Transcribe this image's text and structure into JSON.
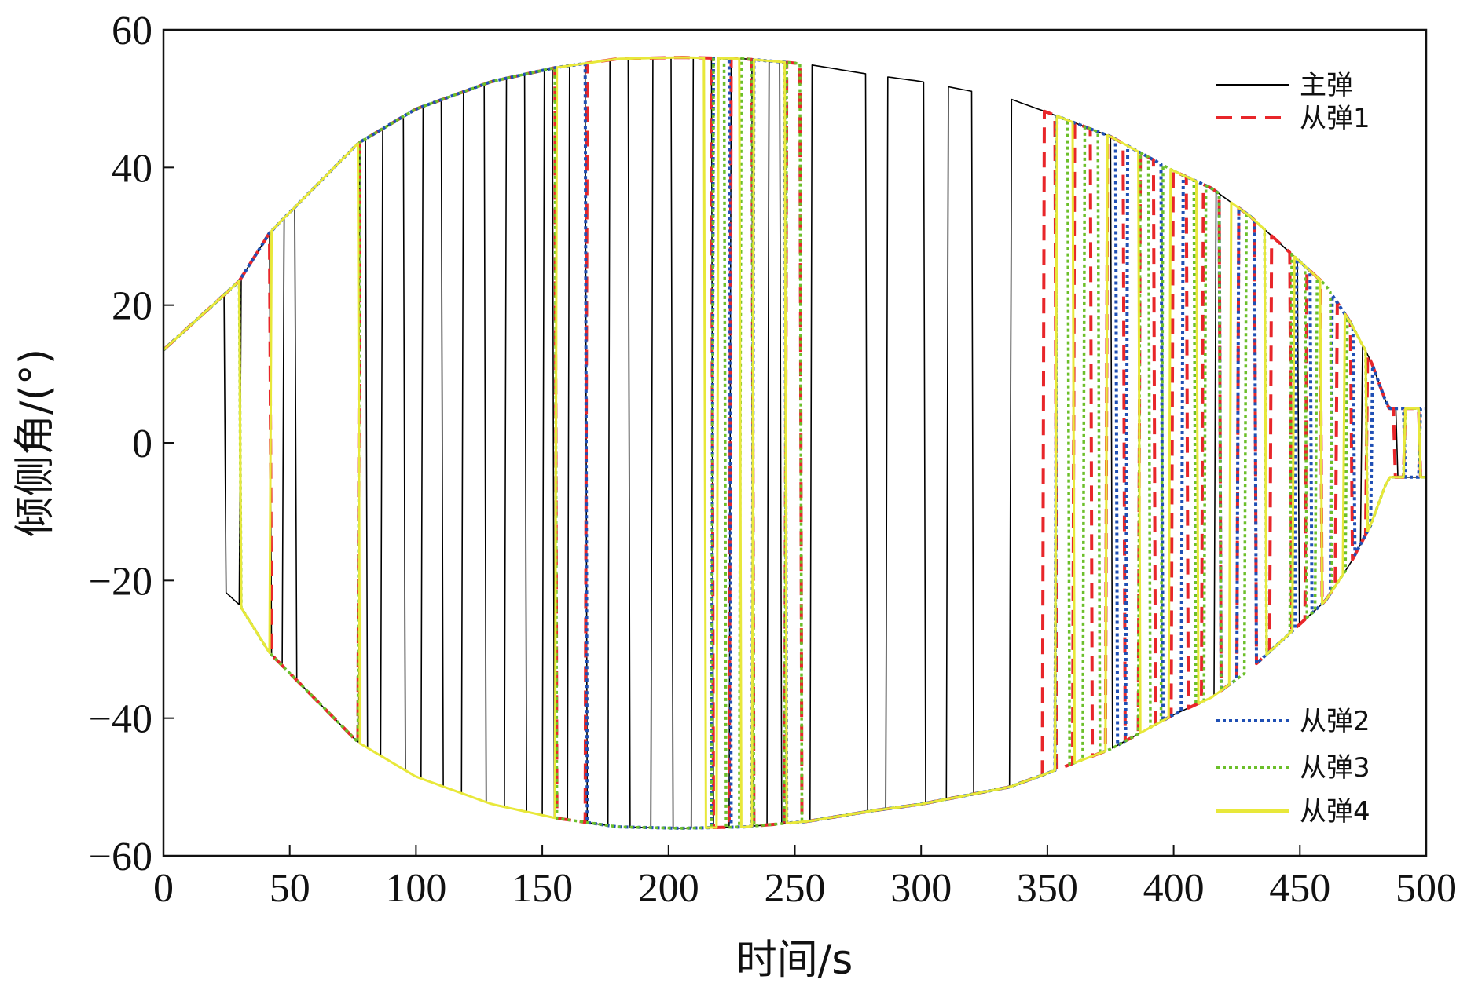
{
  "chart_data": {
    "type": "line",
    "title": "",
    "xlabel": "时间/s",
    "ylabel": "倾侧角/(°)",
    "xlim": [
      0,
      500
    ],
    "ylim": [
      -60,
      60
    ],
    "xticks": [
      "0",
      "50",
      "100",
      "150",
      "200",
      "250",
      "300",
      "350",
      "400",
      "450",
      "500"
    ],
    "yticks": [
      "60",
      "40",
      "20",
      "0",
      "−20",
      "−40",
      "−60"
    ],
    "grid": false,
    "legend": [
      {
        "name": "主弹",
        "color": "#000000",
        "style": "solid",
        "placement": "top-right"
      },
      {
        "name": "从弹1",
        "color": "#e8262a",
        "style": "dashed",
        "placement": "top-right"
      },
      {
        "name": "从弹2",
        "color": "#1f4fb4",
        "style": "dotted",
        "placement": "bottom-right"
      },
      {
        "name": "从弹3",
        "color": "#6bbf2a",
        "style": "dotted",
        "placement": "bottom-right"
      },
      {
        "name": "从弹4",
        "color": "#e8e83a",
        "style": "solid",
        "placement": "bottom-right"
      }
    ],
    "envelope": {
      "description": "bank-angle magnitude envelope (upper = +value, lower = −value)",
      "t": [
        0,
        30,
        42,
        77,
        100,
        130,
        155,
        180,
        205,
        230,
        255,
        280,
        300,
        335,
        350,
        375,
        400,
        415,
        430,
        445,
        460,
        470,
        478,
        485
      ],
      "v": [
        13.5,
        23.5,
        30.5,
        43.5,
        48.5,
        52.5,
        54.5,
        55.8,
        56.0,
        55.8,
        55.0,
        53.5,
        52.5,
        50.0,
        48.0,
        44.5,
        39.5,
        37.0,
        33.0,
        28.0,
        23.0,
        17.5,
        12.0,
        5.0
      ]
    },
    "series": [
      {
        "name": "主弹",
        "color": "#000000",
        "style": "solid",
        "reversal_times": [
          24,
          30,
          42,
          47,
          52,
          77,
          80,
          86,
          95,
          102,
          110,
          118,
          127,
          135,
          143,
          150,
          154,
          160,
          167,
          176,
          184,
          193,
          201,
          209,
          217,
          224,
          233,
          239,
          244,
          256,
          278,
          286,
          301,
          310,
          320,
          335,
          375,
          416,
          449,
          474,
          488
        ]
      },
      {
        "name": "从弹1",
        "color": "#e8262a",
        "style": "dashed",
        "reversal_times": [
          42,
          77,
          155,
          167,
          217,
          224,
          233,
          246,
          252,
          348,
          353,
          360,
          367,
          373,
          380,
          386,
          392,
          399,
          405,
          411,
          418,
          425,
          432,
          438,
          446,
          452,
          458,
          464,
          470,
          476,
          487,
          491,
          497
        ]
      },
      {
        "name": "从弹2",
        "color": "#1f4fb4",
        "style": "dotted",
        "reversal_times": [
          167,
          217,
          224,
          233,
          246,
          353,
          377,
          381,
          395,
          403,
          418,
          425,
          432,
          448,
          454,
          462,
          471,
          478,
          491,
          497
        ]
      },
      {
        "name": "从弹3",
        "color": "#6bbf2a",
        "style": "dotted",
        "reversal_times": [
          30,
          77,
          155,
          217,
          222,
          228,
          233,
          246,
          252,
          353,
          358,
          364,
          370,
          386,
          390,
          395,
          408,
          412,
          418,
          428,
          436,
          446,
          452,
          456,
          462,
          468,
          476,
          491,
          497
        ]
      },
      {
        "name": "从弹4",
        "color": "#e8e83a",
        "style": "solid",
        "reversal_times": [
          30,
          42,
          77,
          155,
          214,
          219,
          228,
          233,
          246,
          353,
          360,
          373,
          386,
          398,
          409,
          422,
          436,
          447,
          458,
          467,
          476,
          491,
          497
        ]
      }
    ],
    "annotations": []
  }
}
